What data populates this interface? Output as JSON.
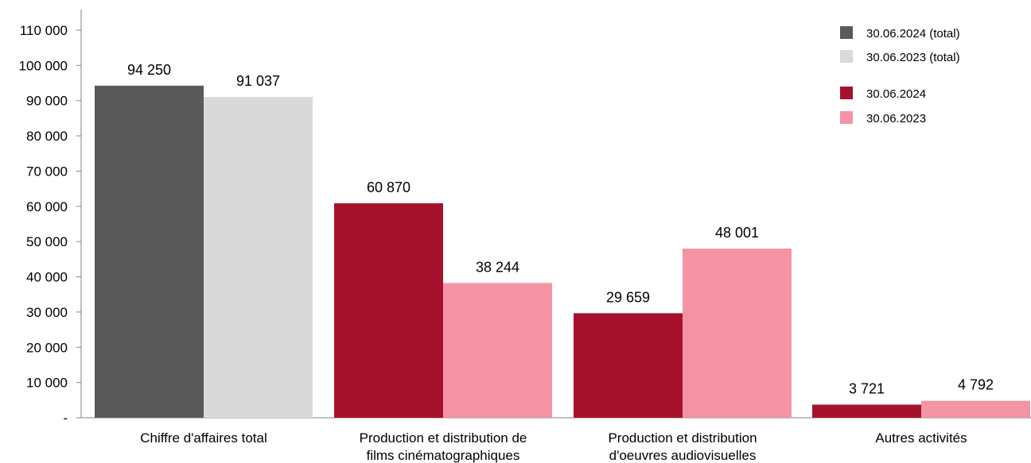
{
  "chart_data": {
    "type": "bar",
    "categories": [
      [
        "Chiffre d'affaires total"
      ],
      [
        "Production et distribution de",
        "films cinématographiques"
      ],
      [
        "Production et distribution",
        "d'oeuvres audiovisuelles"
      ],
      [
        "Autres activités"
      ]
    ],
    "series": [
      {
        "name": "30.06.2024 (total)",
        "color": "#595959",
        "values": [
          94250,
          null,
          null,
          null
        ],
        "labels": [
          "94 250",
          null,
          null,
          null
        ]
      },
      {
        "name": "30.06.2023 (total)",
        "color": "#d9d9d9",
        "values": [
          91037,
          null,
          null,
          null
        ],
        "labels": [
          "91 037",
          null,
          null,
          null
        ]
      },
      {
        "name": "30.06.2024",
        "color": "#a6122d",
        "values": [
          null,
          60870,
          29659,
          3721
        ],
        "labels": [
          null,
          "60 870",
          "29 659",
          "3 721"
        ]
      },
      {
        "name": "30.06.2023",
        "color": "#f493a4",
        "values": [
          null,
          38244,
          48001,
          4792
        ],
        "labels": [
          null,
          "38 244",
          "48 001",
          "4 792"
        ]
      }
    ],
    "y_ticks": [
      {
        "value": 0,
        "label": "-"
      },
      {
        "value": 10000,
        "label": "10 000"
      },
      {
        "value": 20000,
        "label": "20 000"
      },
      {
        "value": 30000,
        "label": "30 000"
      },
      {
        "value": 40000,
        "label": "40 000"
      },
      {
        "value": 50000,
        "label": "50 000"
      },
      {
        "value": 60000,
        "label": "60 000"
      },
      {
        "value": 70000,
        "label": "70 000"
      },
      {
        "value": 80000,
        "label": "80 000"
      },
      {
        "value": 90000,
        "label": "90 000"
      },
      {
        "value": 100000,
        "label": "100 000"
      },
      {
        "value": 110000,
        "label": "110 000"
      }
    ],
    "ylim": [
      0,
      110000
    ],
    "grid": false,
    "legend_position": "top-right"
  }
}
